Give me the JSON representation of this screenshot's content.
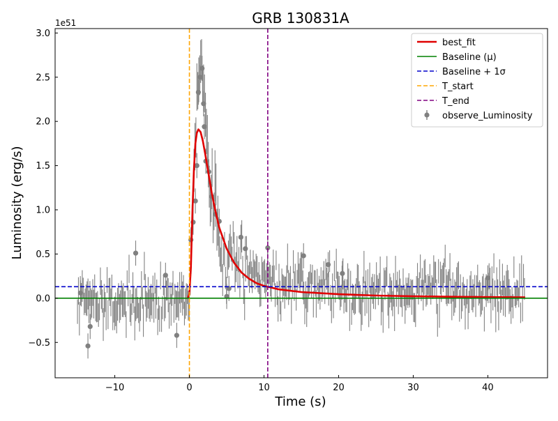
{
  "chart_data": {
    "type": "line",
    "title": "GRB 130831A",
    "xlabel": "Time (s)",
    "ylabel": "Luminosity (erg/s)",
    "y_scale_label": "1e51",
    "xlim": [
      -18,
      48
    ],
    "ylim": [
      -0.9,
      3.05
    ],
    "x_ticks": [
      -10,
      0,
      10,
      20,
      30,
      40
    ],
    "x_tick_labels": [
      "−10",
      "0",
      "10",
      "20",
      "30",
      "40"
    ],
    "y_ticks": [
      -0.5,
      0.0,
      0.5,
      1.0,
      1.5,
      2.0,
      2.5,
      3.0
    ],
    "y_tick_labels": [
      "−0.5",
      "0.0",
      "0.5",
      "1.0",
      "1.5",
      "2.0",
      "2.5",
      "3.0"
    ],
    "grid": false,
    "legend_position": "top-right",
    "legend": [
      {
        "label": "best_fit",
        "kind": "line",
        "color": "#e00000",
        "dash": "solid"
      },
      {
        "label": "Baseline (μ)",
        "kind": "line",
        "color": "#008000",
        "dash": "solid"
      },
      {
        "label": "Baseline + 1σ",
        "kind": "line",
        "color": "#0000cc",
        "dash": "dashed"
      },
      {
        "label": "T_start",
        "kind": "line",
        "color": "#ffa500",
        "dash": "dashed"
      },
      {
        "label": "T_end",
        "kind": "line",
        "color": "#800080",
        "dash": "dashed"
      },
      {
        "label": "observe_Luminosity",
        "kind": "errorbar",
        "color": "#808080",
        "dash": "solid"
      }
    ],
    "baseline_mu": 0.0,
    "baseline_plus_1sigma": 0.13,
    "t_start": 0.0,
    "t_end": 10.5,
    "best_fit": {
      "name": "best_fit",
      "color": "#e00000",
      "x": [
        -0.2,
        0.0,
        0.2,
        0.4,
        0.6,
        0.8,
        1.0,
        1.2,
        1.5,
        1.8,
        2.1,
        2.5,
        3.0,
        3.5,
        4.0,
        5.0,
        6.0,
        7.0,
        8.0,
        9.0,
        10.0,
        12.0,
        15.0,
        20.0,
        25.0,
        30.0,
        35.0,
        40.0,
        45.0
      ],
      "y": [
        0.0,
        0.05,
        0.35,
        0.95,
        1.45,
        1.75,
        1.87,
        1.91,
        1.88,
        1.78,
        1.64,
        1.44,
        1.19,
        0.98,
        0.8,
        0.56,
        0.4,
        0.29,
        0.22,
        0.17,
        0.14,
        0.1,
        0.07,
        0.045,
        0.03,
        0.022,
        0.017,
        0.013,
        0.01
      ]
    },
    "observations": {
      "name": "observe_Luminosity",
      "color": "#808080",
      "x_start": -15.0,
      "x_end": 45.0,
      "dx": 0.128,
      "x": [
        -14.6,
        -13.6,
        -13.3,
        -7.2,
        -3.2,
        -1.7,
        0.2,
        0.5,
        0.8,
        1.0,
        1.2,
        1.4,
        1.7,
        1.9,
        2.0,
        2.2,
        2.6,
        3.0,
        3.5,
        4.0,
        5.0,
        5.3,
        6.9,
        7.5,
        10.5,
        15.3,
        18.6,
        20.5,
        40.0
      ],
      "y": [
        0.06,
        -0.54,
        -0.32,
        0.51,
        0.26,
        -0.42,
        0.66,
        0.86,
        1.1,
        1.5,
        2.33,
        2.5,
        2.6,
        2.2,
        1.94,
        1.55,
        1.43,
        1.15,
        0.95,
        0.87,
        0.02,
        0.11,
        0.69,
        0.56,
        0.57,
        0.48,
        0.38,
        0.28,
        0.23
      ]
    }
  }
}
